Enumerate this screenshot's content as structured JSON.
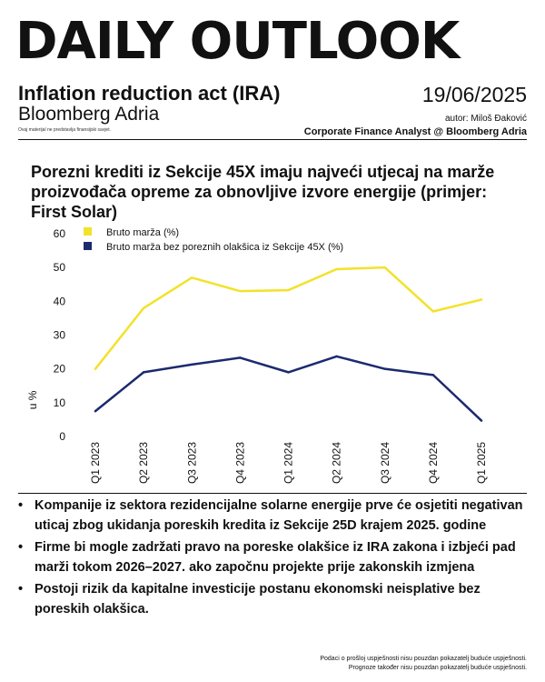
{
  "header": {
    "brand": "DAILY OUTLOOK",
    "subtitle": "Inflation reduction act (IRA)",
    "org": "Bloomberg Adria",
    "disclaimer": "Ovaj materijal ne predstavlja finansijski savjet.",
    "date": "19/06/2025",
    "author": "autor: Miloš Đaković",
    "role": "Corporate Finance Analyst @ Bloomberg Adria"
  },
  "chart_title": "Porezni krediti iz Sekcije 45X imaju najveći utjecaj na marže proizvođača opreme za obnovljive izvore energije (primjer: First Solar)",
  "chart_data": {
    "type": "line",
    "categories": [
      "Q1 2023",
      "Q2 2023",
      "Q3 2023",
      "Q4 2023",
      "Q1 2024",
      "Q2 2024",
      "Q3 2024",
      "Q4 2024",
      "Q1 2025"
    ],
    "series": [
      {
        "name": "Bruto marža (%)",
        "color": "#f2e22b",
        "values": [
          20,
          38,
          47,
          43,
          43.3,
          49.5,
          50,
          37,
          40.5
        ]
      },
      {
        "name": "Bruto marža bez poreznih olakšica iz Sekcije 45X (%)",
        "color": "#1c2a6e",
        "values": [
          7.5,
          19,
          21.3,
          23.3,
          19,
          23.7,
          20,
          18.2,
          4.7
        ]
      }
    ],
    "ylabel": "u %",
    "xlabel": "",
    "ylim": [
      0,
      60
    ],
    "yticks": [
      0,
      10,
      20,
      30,
      40,
      50,
      60
    ],
    "grid": false,
    "legend_position": "top-left"
  },
  "bullets": [
    "Kompanije iz sektora rezidencijalne solarne energije prve će osjetiti negativan uticaj zbog ukidanja poreskih kredita iz Sekcije 25D krajem 2025. godine",
    "Firme bi mogle zadržati pravo na poreske olakšice iz IRA zakona i izbjeći pad marži tokom 2026–2027. ako započnu projekte prije zakonskih izmjena",
    "Postoji rizik da kapitalne investicije postanu ekonomski neisplative bez poreskih olakšica."
  ],
  "bullet_symbol": "•",
  "footnotes": [
    "Podaci o prošlој uspješnosti nisu pouzdan pokazatelj buduće uspješnosti.",
    "Prognoze također nisu pouzdan pokazatelj buduće uspješnosti."
  ]
}
